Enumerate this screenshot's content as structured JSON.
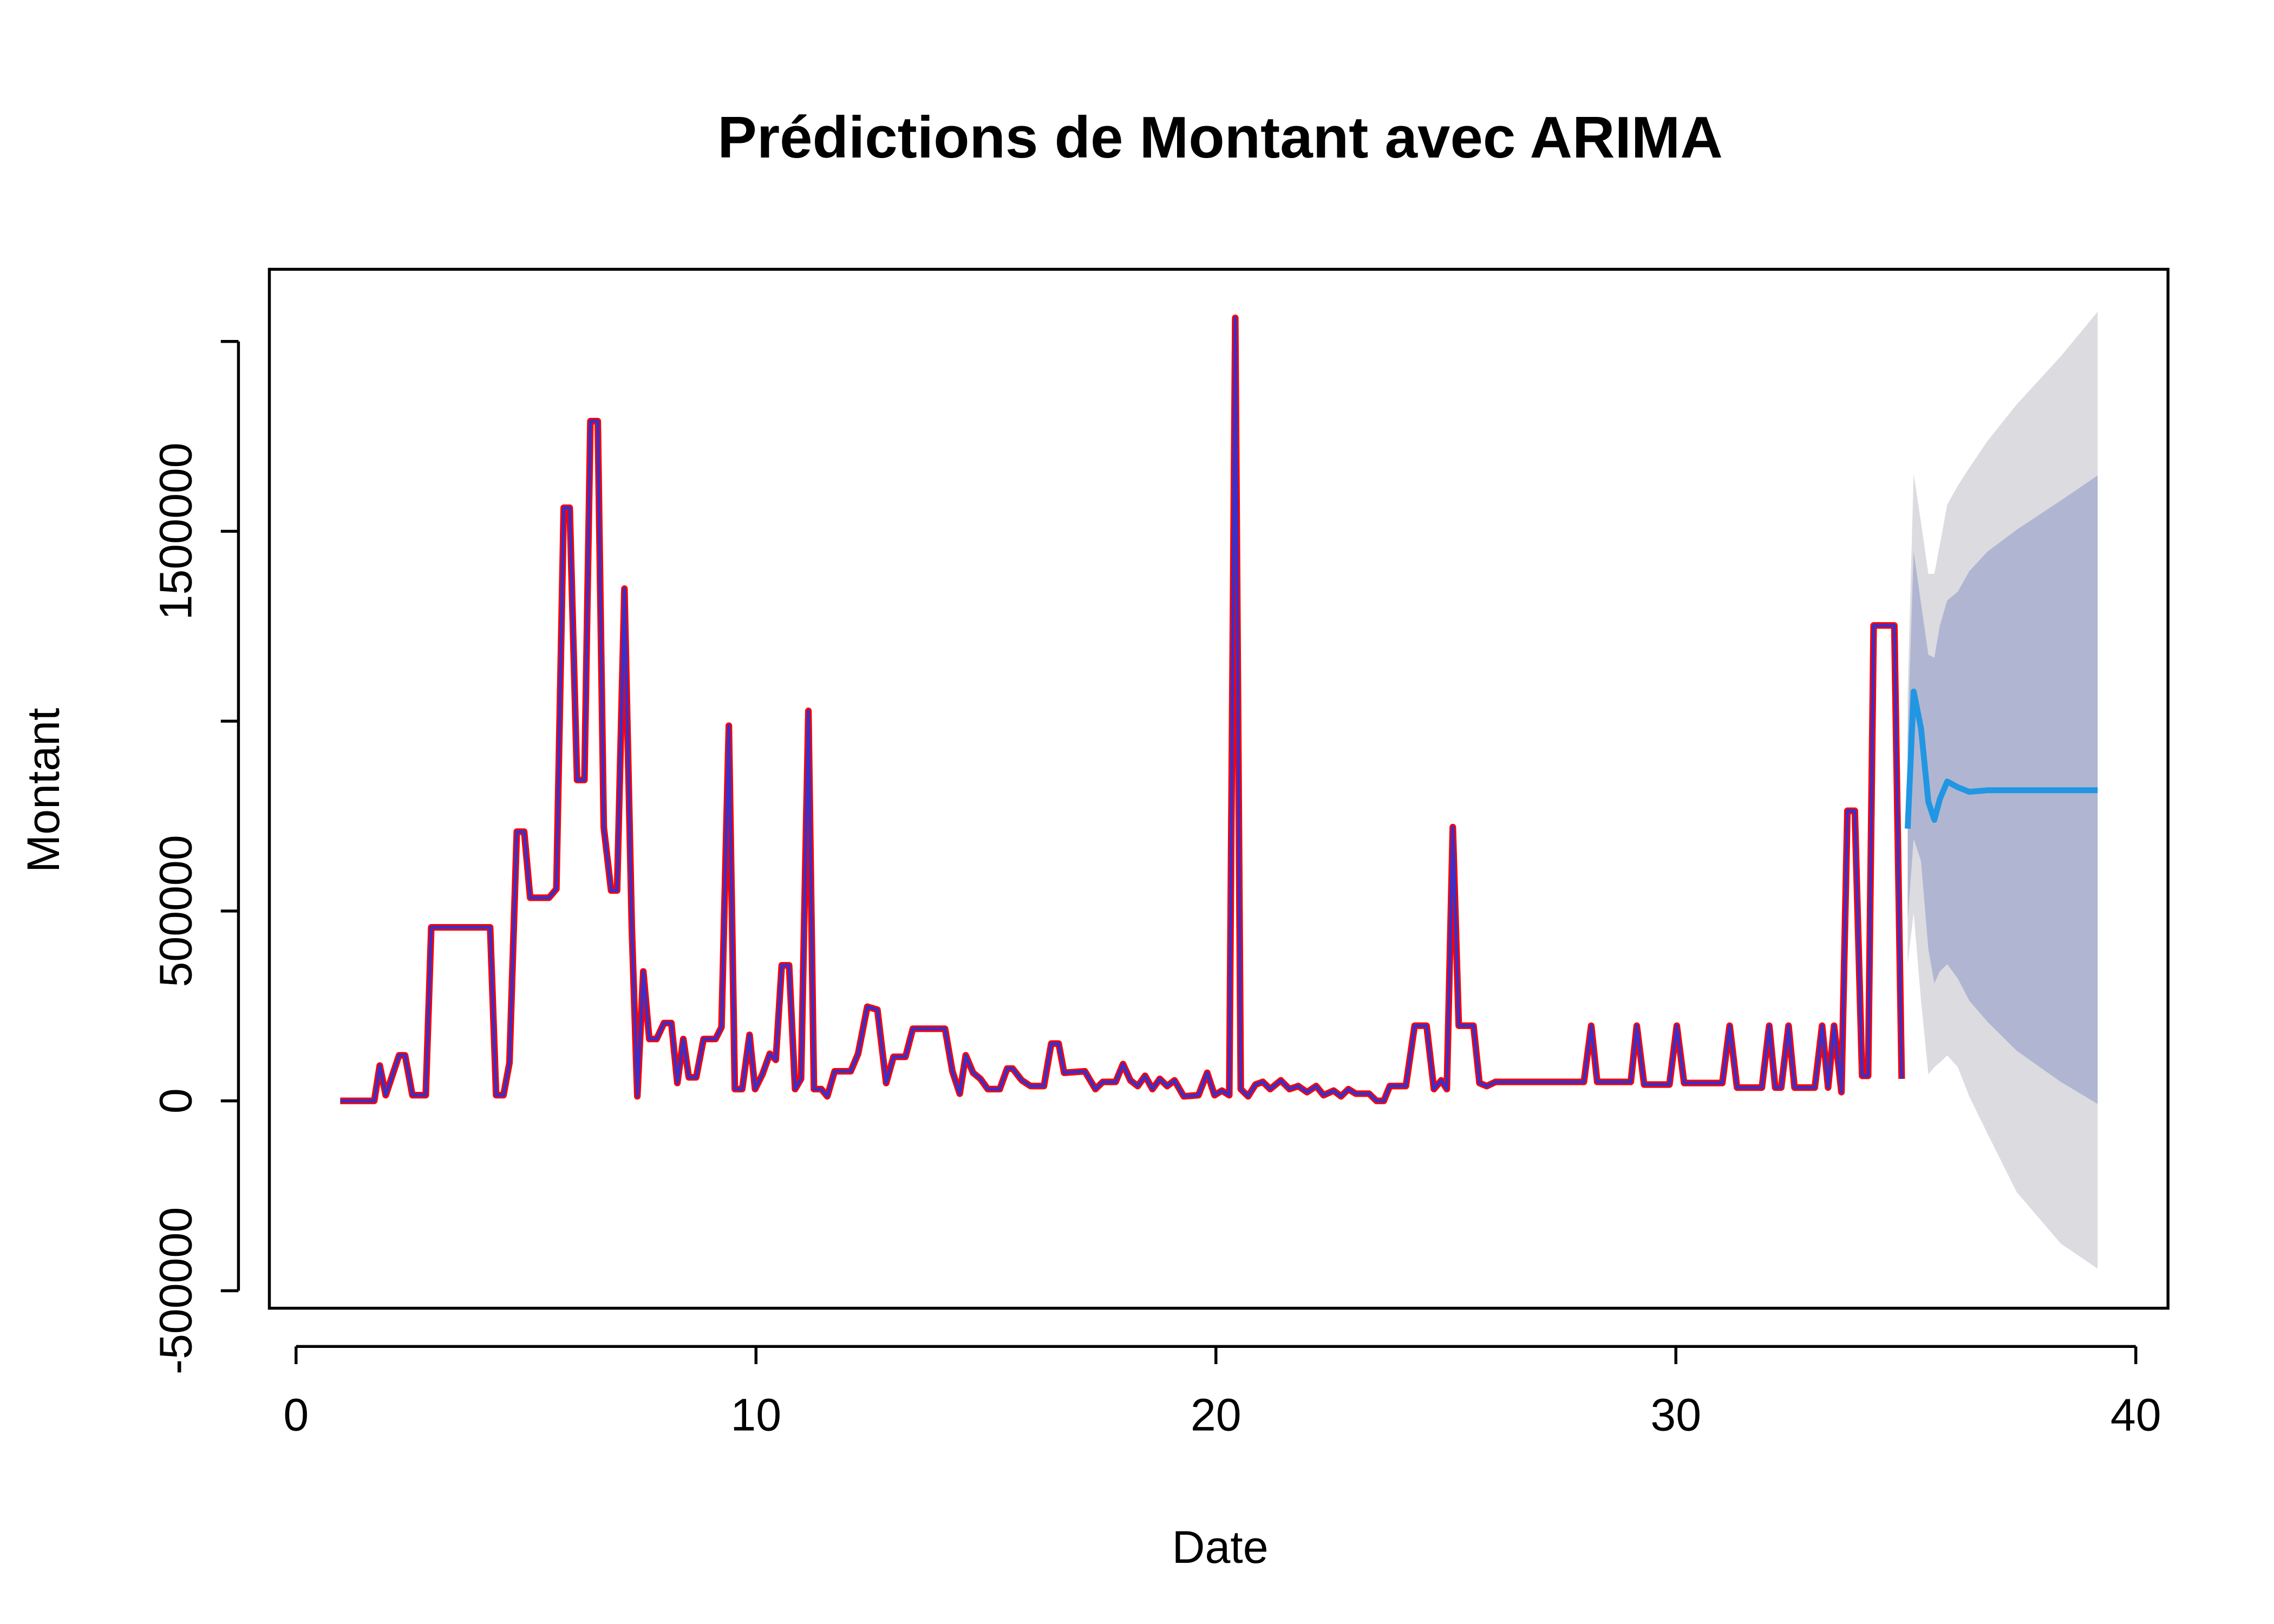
{
  "chart_data": {
    "type": "line",
    "title": "Prédictions de Montant avec ARIMA",
    "xlabel": "Date",
    "ylabel": "Montant",
    "x": [
      0.96,
      1.7,
      1.82,
      1.95,
      2.24,
      2.37,
      2.53,
      2.82,
      2.94,
      4.22,
      4.35,
      4.51,
      4.64,
      4.8,
      4.96,
      5.09,
      5.5,
      5.66,
      5.82,
      5.95,
      6.11,
      6.27,
      6.4,
      6.56,
      6.69,
      6.85,
      6.98,
      7.14,
      7.3,
      7.42,
      7.55,
      7.68,
      7.84,
      8.0,
      8.16,
      8.29,
      8.42,
      8.54,
      8.7,
      8.86,
      9.12,
      9.25,
      9.41,
      9.54,
      9.7,
      9.86,
      9.98,
      10.14,
      10.3,
      10.43,
      10.56,
      10.72,
      10.85,
      10.98,
      11.14,
      11.26,
      11.42,
      11.55,
      11.71,
      12.06,
      12.22,
      12.42,
      12.64,
      12.83,
      12.99,
      13.25,
      13.41,
      14.11,
      14.27,
      14.43,
      14.56,
      14.72,
      14.88,
      15.04,
      15.3,
      15.46,
      15.58,
      15.78,
      15.97,
      16.26,
      16.42,
      16.58,
      16.7,
      17.15,
      17.38,
      17.54,
      17.82,
      17.98,
      18.14,
      18.3,
      18.46,
      18.62,
      18.78,
      18.94,
      19.1,
      19.3,
      19.62,
      19.81,
      19.97,
      20.13,
      20.29,
      20.42,
      20.54,
      20.7,
      20.86,
      21.02,
      21.18,
      21.41,
      21.6,
      21.79,
      21.98,
      22.18,
      22.34,
      22.56,
      22.72,
      22.88,
      23.04,
      23.33,
      23.49,
      23.65,
      23.78,
      24.13,
      24.32,
      24.58,
      24.74,
      24.9,
      25.02,
      25.15,
      25.28,
      25.6,
      25.73,
      25.89,
      26.08,
      28.0,
      28.16,
      28.29,
      29.02,
      29.15,
      29.31,
      29.86,
      30.02,
      30.18,
      31.01,
      31.17,
      31.33,
      31.87,
      32.03,
      32.16,
      32.29,
      32.45,
      32.58,
      33.02,
      33.18,
      33.31,
      33.44,
      33.6,
      33.73,
      33.89,
      34.05,
      34.18,
      34.3,
      34.75,
      34.91
    ],
    "series": [
      {
        "color": "#ff0000",
        "values": [
          0,
          0,
          93000,
          15000,
          120000,
          120000,
          15000,
          15000,
          457000,
          457000,
          15000,
          15000,
          100000,
          709000,
          709000,
          535000,
          535000,
          558000,
          1562000,
          1562000,
          845000,
          845000,
          1790000,
          1790000,
          721000,
          554000,
          554000,
          1349000,
          457000,
          12000,
          341000,
          163000,
          163000,
          205000,
          205000,
          47000,
          163000,
          62000,
          62000,
          163000,
          163000,
          194000,
          988000,
          31000,
          31000,
          174000,
          31000,
          70000,
          124000,
          108000,
          357000,
          357000,
          31000,
          58000,
          1027000,
          31000,
          31000,
          12000,
          78000,
          78000,
          124000,
          248000,
          240000,
          47000,
          116000,
          116000,
          190000,
          190000,
          78000,
          19000,
          120000,
          74000,
          58000,
          31000,
          31000,
          85000,
          85000,
          54000,
          39000,
          39000,
          151000,
          151000,
          74000,
          78000,
          31000,
          50000,
          50000,
          97000,
          54000,
          39000,
          66000,
          31000,
          58000,
          39000,
          54000,
          12000,
          15000,
          74000,
          15000,
          27000,
          15000,
          2062000,
          31000,
          12000,
          43000,
          50000,
          31000,
          54000,
          31000,
          39000,
          23000,
          39000,
          15000,
          27000,
          12000,
          31000,
          19000,
          19000,
          0,
          0,
          39000,
          39000,
          198000,
          198000,
          31000,
          54000,
          31000,
          721000,
          198000,
          198000,
          47000,
          39000,
          50000,
          50000,
          198000,
          50000,
          50000,
          198000,
          43000,
          43000,
          198000,
          47000,
          47000,
          198000,
          35000,
          35000,
          198000,
          35000,
          35000,
          198000,
          35000,
          35000,
          198000,
          35000,
          198000,
          23000,
          764000,
          764000,
          66000,
          66000,
          1252000,
          1252000,
          58000
        ]
      },
      {
        "color": "#3a2fc8",
        "values": [
          0,
          0,
          93000,
          15000,
          120000,
          120000,
          15000,
          15000,
          457000,
          457000,
          15000,
          15000,
          100000,
          709000,
          709000,
          535000,
          535000,
          558000,
          1562000,
          1562000,
          845000,
          845000,
          1790000,
          1790000,
          721000,
          554000,
          554000,
          1349000,
          457000,
          12000,
          341000,
          163000,
          163000,
          205000,
          205000,
          47000,
          163000,
          62000,
          62000,
          163000,
          163000,
          194000,
          988000,
          31000,
          31000,
          174000,
          31000,
          70000,
          124000,
          108000,
          357000,
          357000,
          31000,
          58000,
          1027000,
          31000,
          31000,
          12000,
          78000,
          78000,
          124000,
          248000,
          240000,
          47000,
          116000,
          116000,
          190000,
          190000,
          78000,
          19000,
          120000,
          74000,
          58000,
          31000,
          31000,
          85000,
          85000,
          54000,
          39000,
          39000,
          151000,
          151000,
          74000,
          78000,
          31000,
          50000,
          50000,
          97000,
          54000,
          39000,
          66000,
          31000,
          58000,
          39000,
          54000,
          12000,
          15000,
          74000,
          15000,
          27000,
          15000,
          2062000,
          31000,
          12000,
          43000,
          50000,
          31000,
          54000,
          31000,
          39000,
          23000,
          39000,
          15000,
          27000,
          12000,
          31000,
          19000,
          19000,
          0,
          0,
          39000,
          39000,
          198000,
          198000,
          31000,
          54000,
          31000,
          721000,
          198000,
          198000,
          47000,
          39000,
          50000,
          50000,
          198000,
          50000,
          50000,
          198000,
          43000,
          43000,
          198000,
          47000,
          47000,
          198000,
          35000,
          35000,
          198000,
          35000,
          35000,
          198000,
          35000,
          35000,
          198000,
          35000,
          198000,
          23000,
          764000,
          764000,
          66000,
          66000,
          1252000,
          1252000,
          58000
        ]
      }
    ],
    "forecast": {
      "x": [
        35.04,
        35.17,
        35.33,
        35.49,
        35.62,
        35.74,
        35.9,
        36.13,
        36.38,
        36.77,
        37.41,
        38.37,
        39.17
      ],
      "mean": [
        717000,
        1078000,
        981000,
        787000,
        740000,
        795000,
        841000,
        826000,
        814000,
        818000,
        818000,
        818000,
        818000
      ],
      "lower_80": [
        477000,
        690000,
        632000,
        399000,
        310000,
        341000,
        360000,
        322000,
        264000,
        209000,
        132000,
        50000,
        -8000
      ],
      "upper_80": [
        961000,
        1446000,
        1310000,
        1175000,
        1167000,
        1252000,
        1318000,
        1341000,
        1395000,
        1446000,
        1504000,
        1581000,
        1647000
      ],
      "lower_95": [
        360000,
        496000,
        264000,
        70000,
        89000,
        101000,
        120000,
        89000,
        12000,
        -85000,
        -240000,
        -376000,
        -442000
      ],
      "upper_95": [
        1078000,
        1651000,
        1523000,
        1388000,
        1388000,
        1465000,
        1570000,
        1620000,
        1667000,
        1737000,
        1834000,
        1961000,
        2078000
      ],
      "color": "#2196e3",
      "color_80": "#b0b6d1",
      "color_95": "#dbdbe0"
    },
    "xlim": [
      -0.58,
      40.7
    ],
    "ylim": [
      -546000,
      2190000
    ],
    "xticks": [
      0,
      10,
      20,
      30,
      40
    ],
    "yticks": [
      -500000,
      0,
      500000,
      {
        "value": 1000000,
        "label": null
      },
      1500000,
      {
        "value": 2000000,
        "label": null
      }
    ]
  }
}
